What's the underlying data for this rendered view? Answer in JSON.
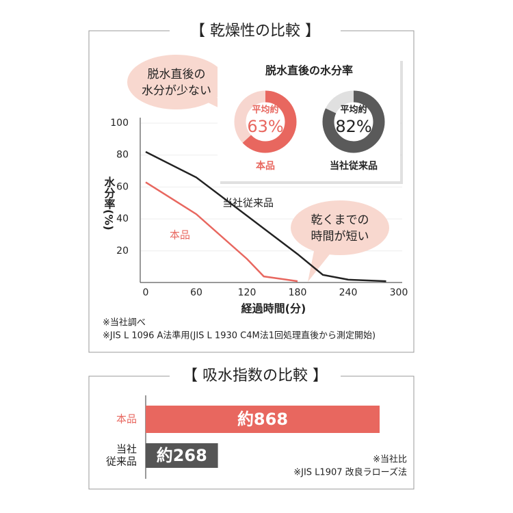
{
  "chart_data": [
    {
      "type": "line",
      "title": "【 乾燥性の比較 】",
      "ylabel": "水分率(%)",
      "xlabel": "経過時間(分)",
      "xlim": [
        0,
        300
      ],
      "xticks": [
        0,
        60,
        120,
        180,
        240,
        300
      ],
      "ylim": [
        0,
        100
      ],
      "yticks": [
        20,
        40,
        60,
        80,
        100
      ],
      "grid": true,
      "series": [
        {
          "name": "当社従来品",
          "color": "#222222",
          "x": [
            0,
            60,
            120,
            180,
            210,
            240,
            285
          ],
          "values": [
            82,
            66,
            42,
            18,
            5,
            2,
            1
          ]
        },
        {
          "name": "本品",
          "color": "#e8675f",
          "x": [
            0,
            60,
            120,
            140,
            180
          ],
          "values": [
            63,
            43,
            15,
            4,
            1
          ]
        }
      ],
      "annotations": [
        [
          "脱水直後の",
          "水分が少ない"
        ],
        [
          "乾くまでの",
          "時間が短い"
        ]
      ],
      "notes": [
        "※当社調べ",
        "※JIS L 1096 A法準用(JIS L 1930 C4M法1回処理直後から測定開始)"
      ]
    },
    {
      "type": "donut",
      "title": "脱水直後の水分率",
      "value_prefix": "平均約",
      "series": [
        {
          "name": "本品",
          "color": "#e8675f",
          "track_color": "#f7d6cf",
          "values": [
            63
          ],
          "value_labels": [
            "63%"
          ]
        },
        {
          "name": "当社従来品",
          "color": "#5a5a5a",
          "track_color": "#e0e0e0",
          "values": [
            82
          ],
          "value_labels": [
            "82%"
          ]
        }
      ]
    },
    {
      "type": "barh",
      "title": "【 吸水指数の比較 】",
      "categories": [
        [
          "本品"
        ],
        [
          "当社",
          "従来品"
        ]
      ],
      "values": [
        868,
        268
      ],
      "value_labels": [
        "約868",
        "約268"
      ],
      "colors": [
        "#e8675f",
        "#555555"
      ],
      "xlim": [
        0,
        1000
      ],
      "notes": [
        "※当社比",
        "※JIS L1907 改良ラローズ法"
      ]
    }
  ]
}
